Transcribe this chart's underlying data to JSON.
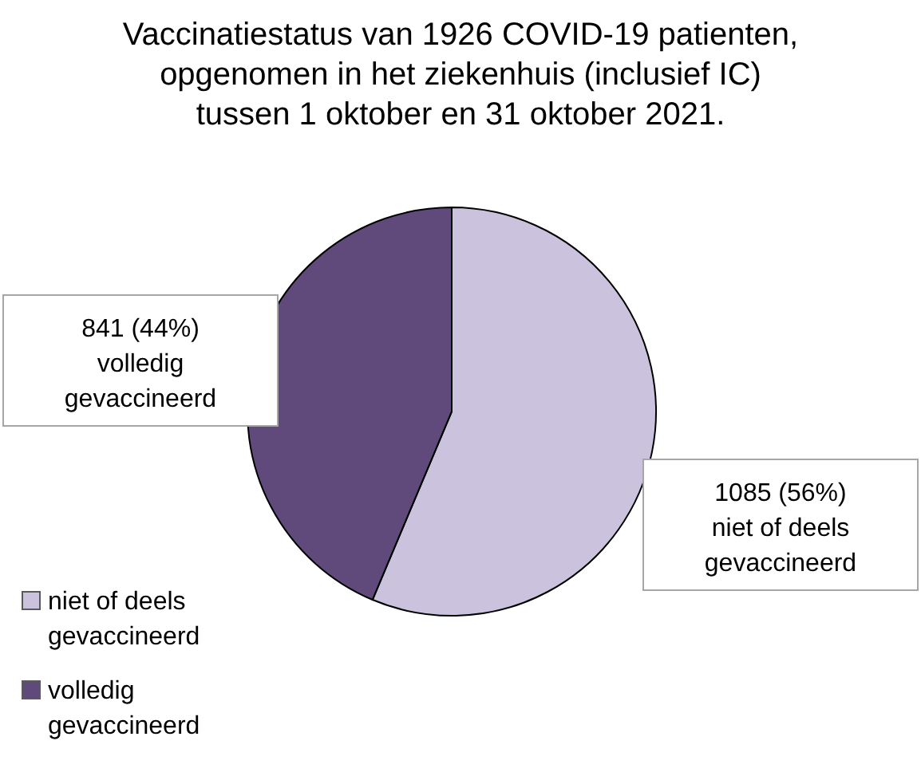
{
  "chart_data": {
    "type": "pie",
    "title": "Vaccinatiestatus van 1926 COVID-19 patienten,\nopgenomen in het ziekenhuis (inclusief IC)\ntussen 1 oktober en 31 oktober 2021.",
    "categories": [
      "niet of deels gevaccineerd",
      "volledig gevaccineerd"
    ],
    "values": [
      1085,
      841
    ],
    "colors": [
      "#cbc3dd",
      "#604a7b"
    ],
    "value_labels": [
      "1085 (56%)",
      "841 (44%)"
    ],
    "legend": "bottom left"
  }
}
